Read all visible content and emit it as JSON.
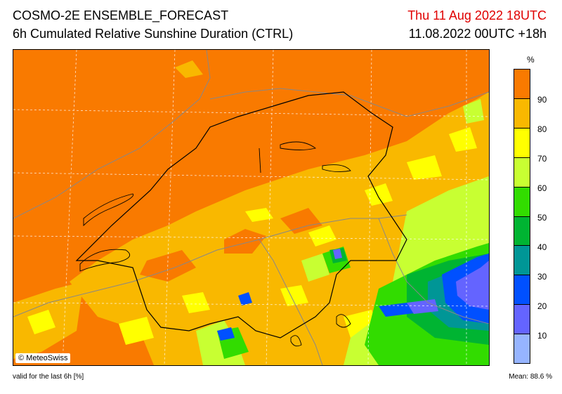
{
  "header": {
    "title": "COSMO-2E ENSEMBLE_FORECAST",
    "subtitle": "6h Cumulated Relative Sunshine Duration (CTRL)",
    "valid_time": "Thu 11 Aug 2022 18UTC",
    "run_info": "11.08.2022 00UTC +18h"
  },
  "map": {
    "copyright": "© MeteoSwiss",
    "background_color": "#f97a00"
  },
  "legend": {
    "unit": "%",
    "ticks": [
      "90",
      "80",
      "70",
      "60",
      "50",
      "40",
      "30",
      "20",
      "10"
    ],
    "colors": [
      "#f97a00",
      "#f9b800",
      "#ffff00",
      "#c8ff32",
      "#32dc00",
      "#00b432",
      "#009696",
      "#0050ff",
      "#6464ff",
      "#96b4ff"
    ]
  },
  "footer": {
    "note": "valid for the last 6h [%]",
    "mean": "Mean:  88.6 %"
  }
}
